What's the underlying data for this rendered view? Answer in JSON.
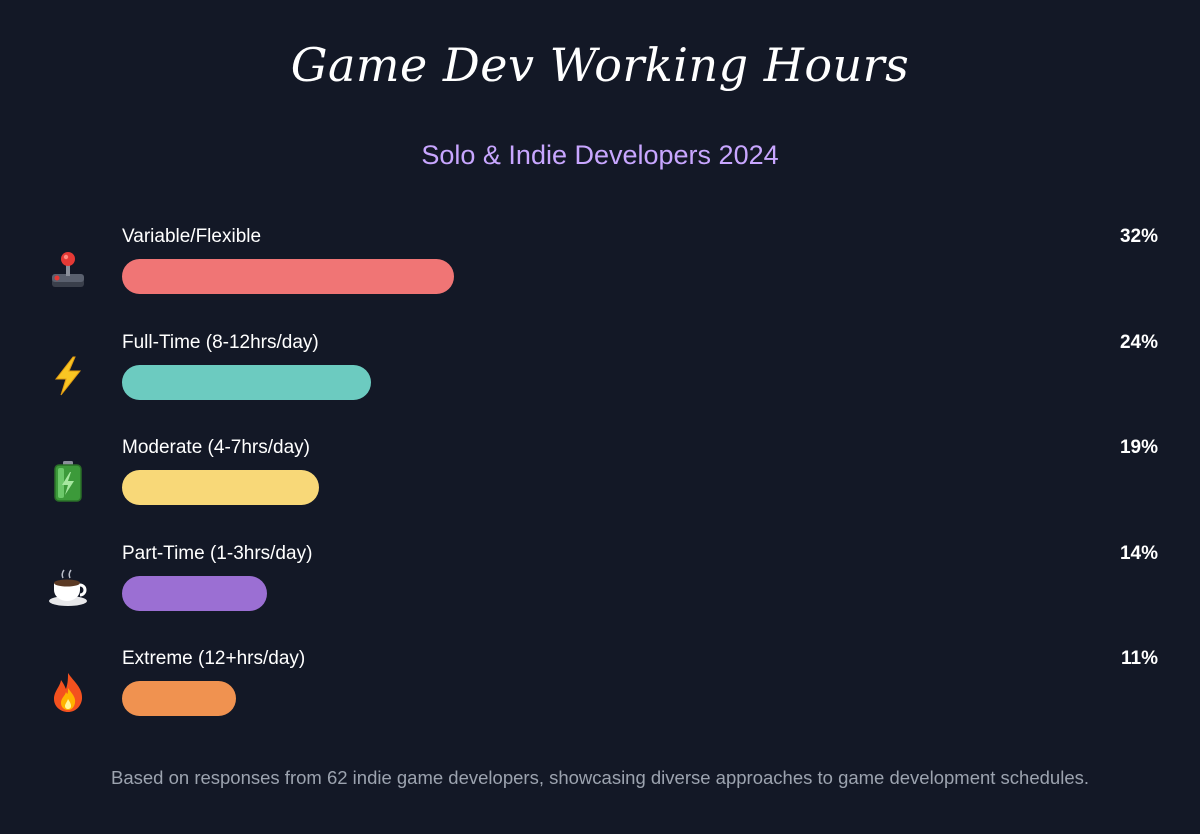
{
  "chart_data": {
    "type": "bar",
    "orientation": "horizontal",
    "title": "Game Dev Working Hours",
    "subtitle": "Solo & Indie Developers 2024",
    "categories": [
      "Variable/Flexible",
      "Full-Time (8-12hrs/day)",
      "Moderate (4-7hrs/day)",
      "Part-Time (1-3hrs/day)",
      "Extreme (12+hrs/day)"
    ],
    "values": [
      32,
      24,
      19,
      14,
      11
    ],
    "value_labels": [
      "32%",
      "24%",
      "19%",
      "14%",
      "11%"
    ],
    "unit": "%",
    "colors": [
      "#f07575",
      "#6ccbc0",
      "#f8d878",
      "#9b6fd3",
      "#f09250"
    ],
    "icons": [
      "joystick-icon",
      "lightning-icon",
      "battery-icon",
      "coffee-icon",
      "fire-icon"
    ],
    "xlim": [
      0,
      100
    ],
    "grid": false,
    "legend": "none",
    "footnote": "Based on responses from 62 indie game developers, showcasing diverse approaches to game development schedules."
  }
}
